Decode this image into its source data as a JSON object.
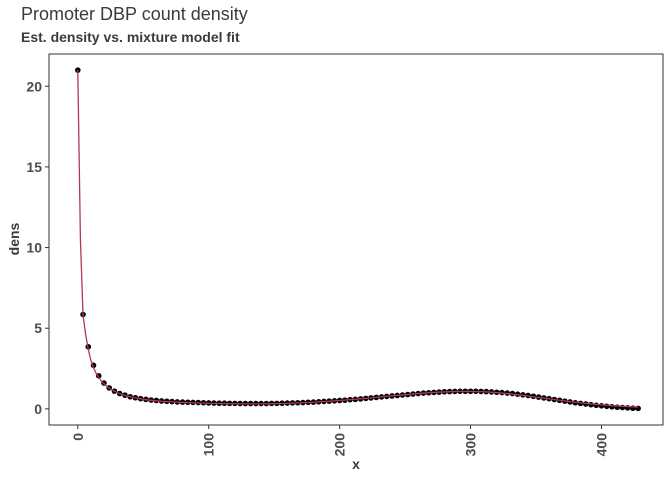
{
  "chart_data": {
    "type": "scatter",
    "title": "Promoter DBP count density",
    "subtitle": "Est. density vs. mixture model fit",
    "xlabel": "x",
    "ylabel": "dens",
    "xlim": [
      -22,
      447
    ],
    "ylim": [
      -1.0,
      22.0
    ],
    "xticks": [
      0,
      100,
      200,
      300,
      400
    ],
    "yticks": [
      0,
      5,
      10,
      15,
      20
    ],
    "grid": false,
    "series": [
      {
        "kind": "points",
        "color": "#000000",
        "points": [
          [
            0,
            21.0
          ],
          [
            4,
            5.85
          ],
          [
            8,
            3.85
          ],
          [
            12,
            2.7
          ],
          [
            16,
            2.05
          ],
          [
            20,
            1.6
          ],
          [
            24,
            1.3
          ],
          [
            28,
            1.1
          ],
          [
            32,
            0.95
          ],
          [
            36,
            0.85
          ],
          [
            40,
            0.75
          ],
          [
            44,
            0.69
          ],
          [
            48,
            0.63
          ],
          [
            52,
            0.59
          ],
          [
            56,
            0.55
          ],
          [
            60,
            0.52
          ],
          [
            64,
            0.49
          ],
          [
            68,
            0.47
          ],
          [
            72,
            0.45
          ],
          [
            76,
            0.43
          ],
          [
            80,
            0.42
          ],
          [
            84,
            0.41
          ],
          [
            88,
            0.4
          ],
          [
            92,
            0.39
          ],
          [
            96,
            0.38
          ],
          [
            100,
            0.37
          ],
          [
            104,
            0.36
          ],
          [
            108,
            0.35
          ],
          [
            112,
            0.35
          ],
          [
            116,
            0.34
          ],
          [
            120,
            0.34
          ],
          [
            124,
            0.33
          ],
          [
            128,
            0.33
          ],
          [
            132,
            0.33
          ],
          [
            136,
            0.33
          ],
          [
            140,
            0.33
          ],
          [
            144,
            0.33
          ],
          [
            148,
            0.34
          ],
          [
            152,
            0.34
          ],
          [
            156,
            0.35
          ],
          [
            160,
            0.36
          ],
          [
            164,
            0.37
          ],
          [
            168,
            0.38
          ],
          [
            172,
            0.39
          ],
          [
            176,
            0.41
          ],
          [
            180,
            0.42
          ],
          [
            184,
            0.44
          ],
          [
            188,
            0.46
          ],
          [
            192,
            0.48
          ],
          [
            196,
            0.5
          ],
          [
            200,
            0.52
          ],
          [
            204,
            0.54
          ],
          [
            208,
            0.57
          ],
          [
            212,
            0.59
          ],
          [
            216,
            0.62
          ],
          [
            220,
            0.65
          ],
          [
            224,
            0.68
          ],
          [
            228,
            0.71
          ],
          [
            232,
            0.74
          ],
          [
            236,
            0.77
          ],
          [
            240,
            0.8
          ],
          [
            244,
            0.83
          ],
          [
            248,
            0.86
          ],
          [
            252,
            0.89
          ],
          [
            256,
            0.92
          ],
          [
            260,
            0.95
          ],
          [
            264,
            0.98
          ],
          [
            268,
            1.0
          ],
          [
            272,
            1.02
          ],
          [
            276,
            1.04
          ],
          [
            280,
            1.06
          ],
          [
            284,
            1.07
          ],
          [
            288,
            1.08
          ],
          [
            292,
            1.09
          ],
          [
            296,
            1.09
          ],
          [
            300,
            1.09
          ],
          [
            304,
            1.09
          ],
          [
            308,
            1.08
          ],
          [
            312,
            1.07
          ],
          [
            316,
            1.05
          ],
          [
            320,
            1.03
          ],
          [
            324,
            1.01
          ],
          [
            328,
            0.98
          ],
          [
            332,
            0.95
          ],
          [
            336,
            0.91
          ],
          [
            340,
            0.87
          ],
          [
            344,
            0.83
          ],
          [
            348,
            0.78
          ],
          [
            352,
            0.73
          ],
          [
            356,
            0.68
          ],
          [
            360,
            0.63
          ],
          [
            364,
            0.58
          ],
          [
            368,
            0.53
          ],
          [
            372,
            0.48
          ],
          [
            376,
            0.43
          ],
          [
            380,
            0.38
          ],
          [
            384,
            0.34
          ],
          [
            388,
            0.3
          ],
          [
            392,
            0.26
          ],
          [
            396,
            0.22
          ],
          [
            400,
            0.19
          ],
          [
            404,
            0.16
          ],
          [
            408,
            0.13
          ],
          [
            412,
            0.1
          ],
          [
            416,
            0.08
          ],
          [
            420,
            0.06
          ],
          [
            424,
            0.04
          ],
          [
            428,
            0.03
          ]
        ]
      },
      {
        "kind": "line",
        "color": "#b03a4e",
        "points": [
          [
            0,
            21.0
          ],
          [
            2,
            10.5
          ],
          [
            4,
            5.8
          ],
          [
            6,
            4.6
          ],
          [
            8,
            3.7
          ],
          [
            10,
            3.0
          ],
          [
            12,
            2.55
          ],
          [
            14,
            2.2
          ],
          [
            16,
            1.95
          ],
          [
            18,
            1.72
          ],
          [
            20,
            1.55
          ],
          [
            24,
            1.28
          ],
          [
            28,
            1.09
          ],
          [
            32,
            0.95
          ],
          [
            36,
            0.84
          ],
          [
            40,
            0.75
          ],
          [
            44,
            0.68
          ],
          [
            48,
            0.62
          ],
          [
            52,
            0.57
          ],
          [
            56,
            0.53
          ],
          [
            60,
            0.5
          ],
          [
            64,
            0.47
          ],
          [
            70,
            0.44
          ],
          [
            80,
            0.4
          ],
          [
            90,
            0.37
          ],
          [
            100,
            0.35
          ],
          [
            110,
            0.33
          ],
          [
            120,
            0.32
          ],
          [
            130,
            0.31
          ],
          [
            140,
            0.31
          ],
          [
            150,
            0.32
          ],
          [
            160,
            0.34
          ],
          [
            170,
            0.37
          ],
          [
            180,
            0.41
          ],
          [
            190,
            0.46
          ],
          [
            200,
            0.52
          ],
          [
            210,
            0.58
          ],
          [
            220,
            0.65
          ],
          [
            230,
            0.73
          ],
          [
            240,
            0.81
          ],
          [
            250,
            0.88
          ],
          [
            260,
            0.95
          ],
          [
            270,
            1.01
          ],
          [
            280,
            1.05
          ],
          [
            290,
            1.08
          ],
          [
            300,
            1.08
          ],
          [
            310,
            1.06
          ],
          [
            320,
            1.01
          ],
          [
            330,
            0.93
          ],
          [
            340,
            0.84
          ],
          [
            350,
            0.73
          ],
          [
            360,
            0.62
          ],
          [
            370,
            0.51
          ],
          [
            380,
            0.41
          ],
          [
            390,
            0.32
          ],
          [
            400,
            0.25
          ],
          [
            410,
            0.19
          ],
          [
            420,
            0.14
          ],
          [
            428,
            0.11
          ]
        ]
      }
    ]
  }
}
